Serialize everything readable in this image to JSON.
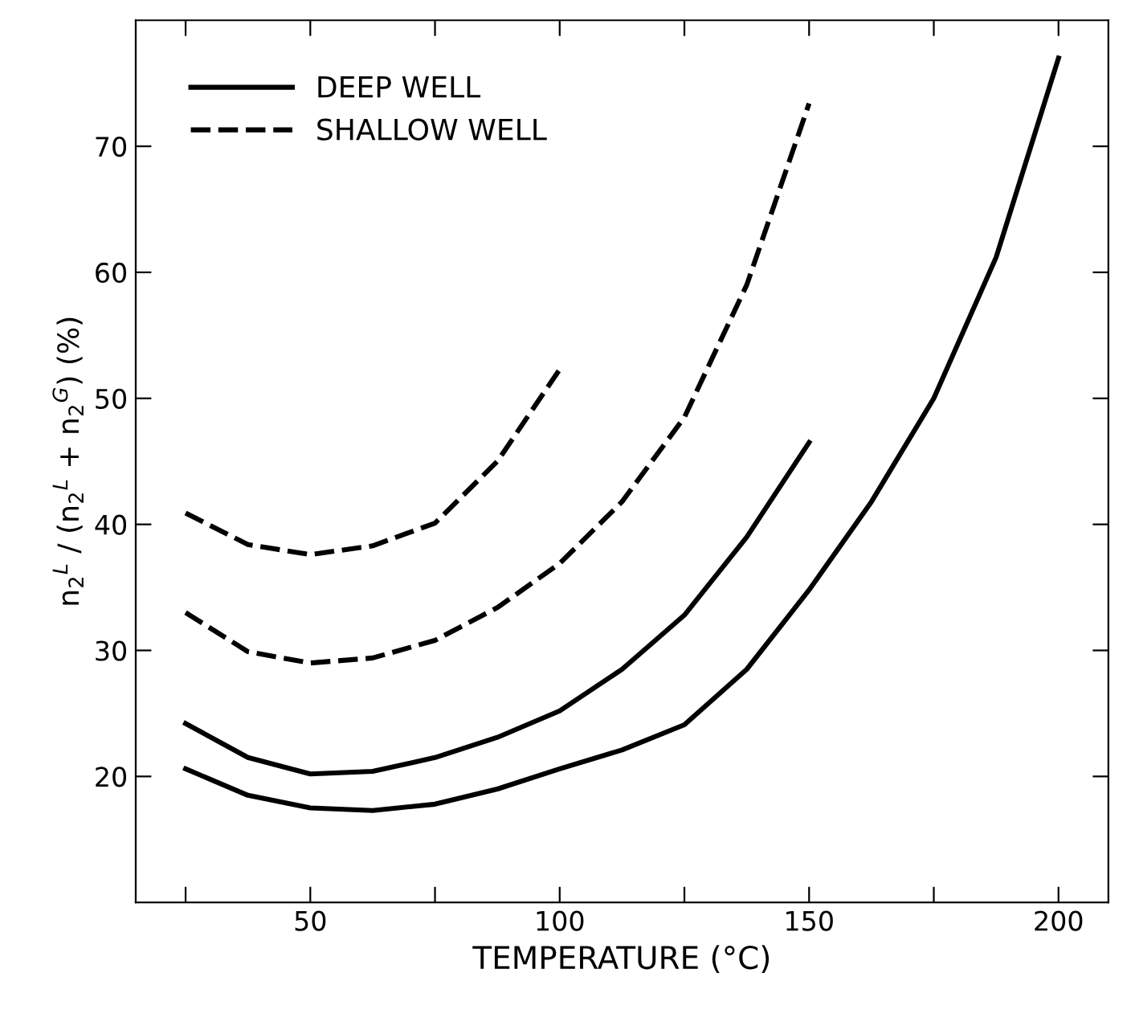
{
  "chart_data": {
    "type": "line",
    "xlabel": "TEMPERATURE (°C)",
    "ylabel": "n$_{2}$$^{L}$ / (n$_{2}$$^{L}$ + n$_{2}$$^{G}$) (%)",
    "xlim": [
      15,
      210
    ],
    "ylim": [
      10,
      80
    ],
    "xticks": [
      {
        "value": 25,
        "label": null
      },
      50,
      {
        "value": 75,
        "label": null
      },
      100,
      {
        "value": 125,
        "label": null
      },
      150,
      {
        "value": 175,
        "label": null
      },
      200
    ],
    "yticks": [
      20,
      30,
      40,
      50,
      60,
      70
    ],
    "legend": "top left",
    "grid": false,
    "marker": "none",
    "series": [
      {
        "name": "DEEP WELL",
        "color": "#000000",
        "line_style": "solid",
        "x": [
          25,
          37.5,
          50,
          62.5,
          75,
          87.5,
          100,
          112.5,
          125,
          137.5,
          150
        ],
        "values": [
          24.2,
          21.5,
          20.2,
          20.4,
          21.5,
          23.1,
          25.2,
          28.5,
          32.8,
          39,
          46.5
        ]
      },
      {
        "color": "#000000",
        "line_style": "solid",
        "x": [
          25,
          37.5,
          50,
          62.5,
          75,
          87.5,
          100,
          112.5,
          125,
          137.5,
          150,
          162.5,
          175,
          187.5,
          200
        ],
        "values": [
          20.6,
          18.5,
          17.5,
          17.3,
          17.8,
          19,
          20.6,
          22.1,
          24.1,
          28.5,
          34.8,
          41.8,
          50,
          61.2,
          77
        ]
      },
      {
        "name": "SHALLOW WELL",
        "color": "#000000",
        "line_style": "dashed",
        "x": [
          25,
          37.5,
          50,
          62.5,
          75,
          87.5,
          100
        ],
        "values": [
          40.9,
          38.4,
          37.6,
          38.3,
          40.1,
          45,
          52.3
        ]
      },
      {
        "color": "#000000",
        "line_style": "dashed",
        "x": [
          25,
          37.5,
          50,
          62.5,
          75,
          87.5,
          100,
          112.5,
          125,
          137.5,
          150
        ],
        "values": [
          33,
          29.9,
          29,
          29.4,
          30.8,
          33.4,
          36.9,
          41.8,
          48.5,
          59,
          73.4
        ]
      }
    ]
  }
}
